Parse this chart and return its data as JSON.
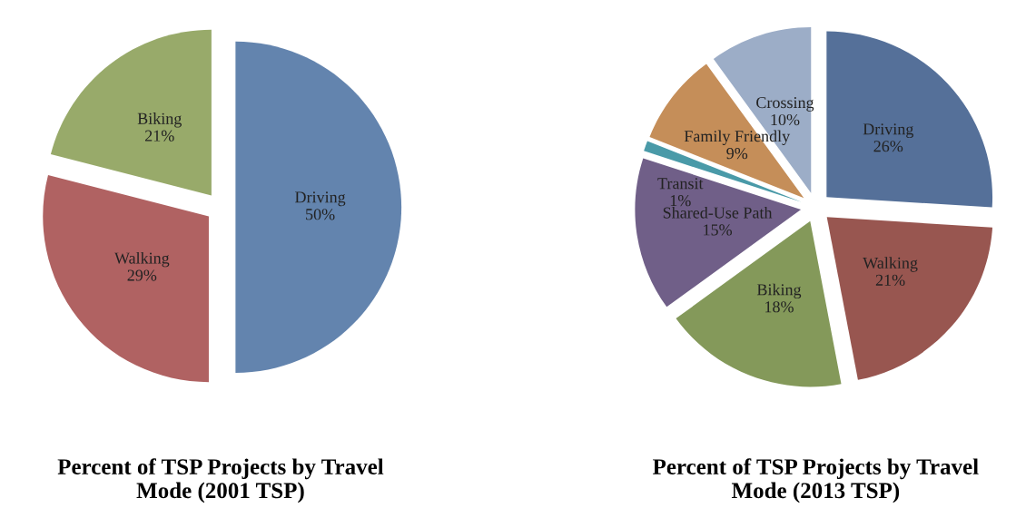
{
  "chart_data": [
    {
      "type": "pie",
      "title": "Percent of TSP Projects by Travel\nMode (2001 TSP)",
      "categories": [
        "Driving",
        "Walking",
        "Biking"
      ],
      "values": [
        50,
        29,
        21
      ],
      "value_labels": [
        "50%",
        "29%",
        "21%"
      ],
      "colors": [
        "#6384ae",
        "#b06262",
        "#98aa6a"
      ],
      "legend": false
    },
    {
      "type": "pie",
      "title": "Percent of TSP Projects by Travel\nMode (2013 TSP)",
      "categories": [
        "Driving",
        "Walking",
        "Biking",
        "Shared-Use Path",
        "Transit",
        "Family Friendly",
        "Crossing"
      ],
      "values": [
        26,
        21,
        18,
        15,
        1,
        9,
        10
      ],
      "value_labels": [
        "26%",
        "21%",
        "18%",
        "15%",
        "1%",
        "9%",
        "10%"
      ],
      "colors": [
        "#557099",
        "#985650",
        "#84995a",
        "#705f88",
        "#4a9aa8",
        "#c58e59",
        "#9cadc7"
      ],
      "legend": false
    }
  ]
}
